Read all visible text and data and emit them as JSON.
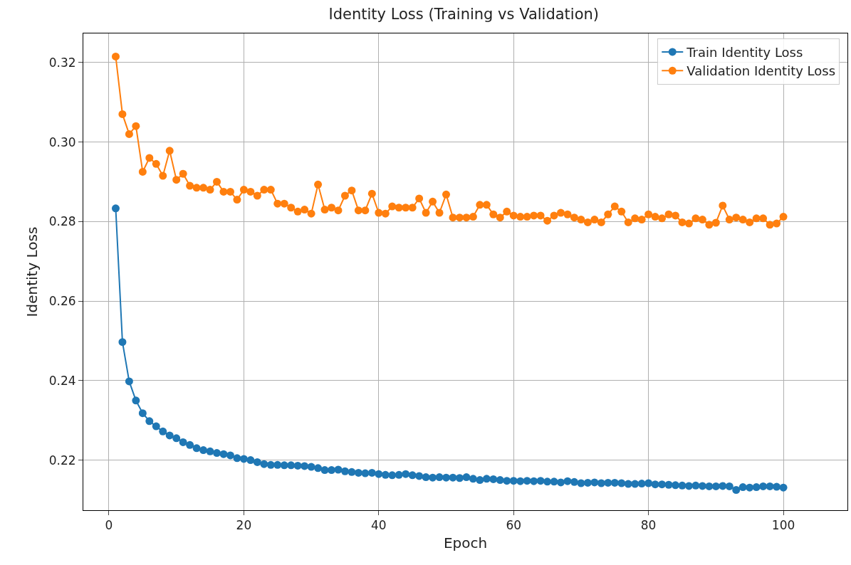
{
  "chart_data": {
    "type": "line",
    "title": "Identity Loss (Training vs Validation)",
    "xlabel": "Epoch",
    "ylabel": "Identity Loss",
    "x": [
      1,
      2,
      3,
      4,
      5,
      6,
      7,
      8,
      9,
      10,
      11,
      12,
      13,
      14,
      15,
      16,
      17,
      18,
      19,
      20,
      21,
      22,
      23,
      24,
      25,
      26,
      27,
      28,
      29,
      30,
      31,
      32,
      33,
      34,
      35,
      36,
      37,
      38,
      39,
      40,
      41,
      42,
      43,
      44,
      45,
      46,
      47,
      48,
      49,
      50,
      51,
      52,
      53,
      54,
      55,
      56,
      57,
      58,
      59,
      60,
      61,
      62,
      63,
      64,
      65,
      66,
      67,
      68,
      69,
      70,
      71,
      72,
      73,
      74,
      75,
      76,
      77,
      78,
      79,
      80,
      81,
      82,
      83,
      84,
      85,
      86,
      87,
      88,
      89,
      90,
      91,
      92,
      93,
      94,
      95,
      96,
      97,
      98,
      99,
      100
    ],
    "series": [
      {
        "name": "Train Identity Loss",
        "color": "#1f77b4",
        "values": [
          0.2833,
          0.2497,
          0.2398,
          0.235,
          0.2318,
          0.2298,
          0.2285,
          0.2272,
          0.2262,
          0.2255,
          0.2245,
          0.2238,
          0.223,
          0.2225,
          0.2222,
          0.2218,
          0.2215,
          0.2212,
          0.2205,
          0.2203,
          0.22,
          0.2195,
          0.219,
          0.2188,
          0.2188,
          0.2187,
          0.2187,
          0.2186,
          0.2185,
          0.2183,
          0.218,
          0.2175,
          0.2175,
          0.2176,
          0.2172,
          0.217,
          0.2168,
          0.2167,
          0.2168,
          0.2165,
          0.2163,
          0.2162,
          0.2163,
          0.2165,
          0.2162,
          0.216,
          0.2157,
          0.2156,
          0.2157,
          0.2156,
          0.2156,
          0.2155,
          0.2157,
          0.2153,
          0.215,
          0.2153,
          0.2152,
          0.215,
          0.2148,
          0.2148,
          0.2147,
          0.2148,
          0.2147,
          0.2148,
          0.2146,
          0.2146,
          0.2144,
          0.2147,
          0.2145,
          0.2142,
          0.2143,
          0.2144,
          0.2142,
          0.2143,
          0.2143,
          0.2142,
          0.214,
          0.214,
          0.2141,
          0.2142,
          0.2139,
          0.2139,
          0.2138,
          0.2137,
          0.2136,
          0.2135,
          0.2136,
          0.2135,
          0.2134,
          0.2134,
          0.2135,
          0.2134,
          0.2125,
          0.2132,
          0.2131,
          0.2132,
          0.2134,
          0.2134,
          0.2133,
          0.2131
        ]
      },
      {
        "name": "Validation Identity Loss",
        "color": "#ff7f0e",
        "values": [
          0.3215,
          0.307,
          0.302,
          0.304,
          0.2925,
          0.296,
          0.2945,
          0.2915,
          0.2978,
          0.2905,
          0.292,
          0.289,
          0.2885,
          0.2885,
          0.288,
          0.29,
          0.2875,
          0.2875,
          0.2855,
          0.288,
          0.2875,
          0.2865,
          0.288,
          0.288,
          0.2845,
          0.2845,
          0.2835,
          0.2825,
          0.283,
          0.282,
          0.2893,
          0.283,
          0.2835,
          0.2828,
          0.2865,
          0.2878,
          0.2828,
          0.2828,
          0.287,
          0.2822,
          0.282,
          0.2838,
          0.2835,
          0.2835,
          0.2835,
          0.2858,
          0.2822,
          0.285,
          0.2822,
          0.2868,
          0.281,
          0.281,
          0.281,
          0.2812,
          0.2842,
          0.2842,
          0.2818,
          0.281,
          0.2825,
          0.2815,
          0.2812,
          0.2812,
          0.2815,
          0.2815,
          0.2802,
          0.2815,
          0.2822,
          0.2818,
          0.281,
          0.2805,
          0.2798,
          0.2805,
          0.2798,
          0.2818,
          0.2838,
          0.2825,
          0.2798,
          0.2808,
          0.2805,
          0.2818,
          0.2812,
          0.2808,
          0.2818,
          0.2815,
          0.2798,
          0.2795,
          0.2808,
          0.2805,
          0.2792,
          0.2797,
          0.284,
          0.2805,
          0.281,
          0.2805,
          0.2798,
          0.2808,
          0.2808,
          0.2792,
          0.2795,
          0.2812
        ]
      }
    ],
    "xlim": [
      -3.8,
      109.5
    ],
    "xticks": [
      0,
      20,
      40,
      60,
      80,
      100
    ],
    "ylim": [
      0.2074,
      0.3273
    ],
    "yticks": [
      {
        "value": 0.22,
        "label": "0.22"
      },
      {
        "value": 0.24,
        "label": "0.24"
      },
      {
        "value": 0.26,
        "label": "0.26"
      },
      {
        "value": 0.28,
        "label": "0.28"
      },
      {
        "value": 0.3,
        "label": "0.30"
      },
      {
        "value": 0.32,
        "label": "0.32"
      }
    ],
    "grid": true,
    "legend": "top right",
    "marker": "circle",
    "line_style": "solid"
  }
}
